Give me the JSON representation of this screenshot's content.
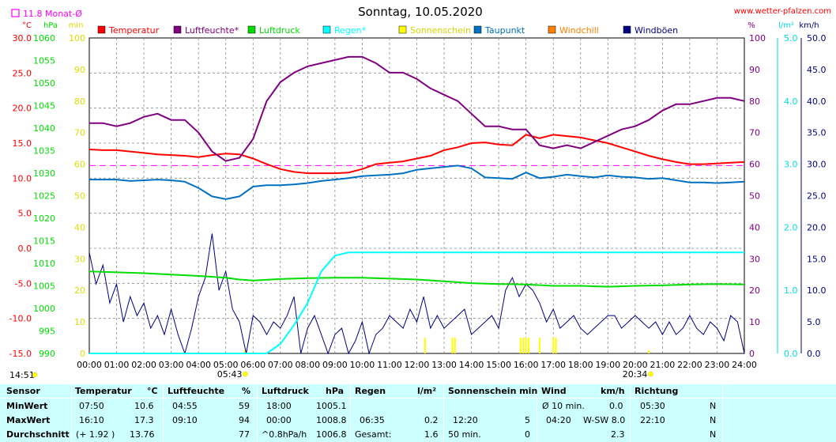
{
  "chart_data": {
    "type": "line",
    "title": "Sonntag, 10.05.2020",
    "source": "www.wetter-pfalzen.com",
    "monthly_avg_label": "11.8 Monat-Ø",
    "monthly_avg_value": 11.8,
    "left_axes": [
      {
        "unit": "°C",
        "min": -15,
        "max": 30,
        "step": 5,
        "color": "#ff0000",
        "ticks": [
          "30.0",
          "25.0",
          "20.0",
          "15.0",
          "10.0",
          "5.0",
          "0.0",
          "-5.0",
          "-10.0",
          "-15.0"
        ]
      },
      {
        "unit": "hPa",
        "min": 990,
        "max": 1060,
        "step": 5,
        "color": "#00dd00",
        "ticks": [
          "1060",
          "1055",
          "1050",
          "1045",
          "1040",
          "1035",
          "1030",
          "1025",
          "1020",
          "1015",
          "1010",
          "1005",
          "1000",
          "995",
          "990"
        ]
      },
      {
        "unit": "min",
        "min": 0,
        "max": 100,
        "step": 10,
        "color": "#dddd00",
        "ticks": [
          "100",
          "90",
          "80",
          "70",
          "60",
          "50",
          "40",
          "30",
          "20",
          "10",
          "0"
        ]
      }
    ],
    "right_axes": [
      {
        "unit": "%",
        "min": 0,
        "max": 100,
        "step": 10,
        "color": "#800080",
        "ticks": [
          "100",
          "90",
          "80",
          "70",
          "60",
          "50",
          "40",
          "30",
          "20",
          "10",
          "0"
        ]
      },
      {
        "unit": "l/m²",
        "min": 0,
        "max": 5,
        "step": 1,
        "color": "#00dddd",
        "ticks": [
          "5.0",
          "4.0",
          "3.0",
          "2.0",
          "1.0",
          "0.0"
        ]
      },
      {
        "unit": "km/h",
        "min": 0,
        "max": 50,
        "step": 5,
        "color": "#000080",
        "ticks": [
          "50.0",
          "45.0",
          "40.0",
          "35.0",
          "30.0",
          "25.0",
          "20.0",
          "15.0",
          "10.0",
          "5.0",
          "0.0"
        ]
      }
    ],
    "x_ticks": [
      "00:00",
      "01:00",
      "02:00",
      "03:00",
      "04:00",
      "05:00",
      "06:00",
      "07:00",
      "08:00",
      "09:00",
      "10:00",
      "11:00",
      "12:00",
      "13:00",
      "14:00",
      "15:00",
      "16:00",
      "17:00",
      "18:00",
      "19:00",
      "20:00",
      "21:00",
      "22:00",
      "23:00",
      "24:00"
    ],
    "sunrise": "05:43",
    "sunset": "20:34",
    "current_time": "14:51",
    "legend": [
      {
        "name": "Temperatur",
        "color": "#ff0000"
      },
      {
        "name": "Luftfeuchte*",
        "color": "#800080"
      },
      {
        "name": "Luftdruck",
        "color": "#00dd00"
      },
      {
        "name": "Regen*",
        "color": "#00ffff"
      },
      {
        "name": "Sonnenschein",
        "color": "#ffff00"
      },
      {
        "name": "Taupunkt",
        "color": "#0070c0"
      },
      {
        "name": "Windchill",
        "color": "#ff8000"
      },
      {
        "name": "Windböen",
        "color": "#000080"
      }
    ],
    "series": [
      {
        "name": "Temperatur",
        "unit": "°C",
        "color": "#ff0000",
        "x": [
          0,
          0.5,
          1,
          1.5,
          2,
          2.5,
          3,
          3.5,
          4,
          4.5,
          5,
          5.5,
          6,
          6.5,
          7,
          7.5,
          8,
          8.5,
          9,
          9.5,
          10,
          10.5,
          11,
          11.5,
          12,
          12.5,
          13,
          13.5,
          14,
          14.5,
          15,
          15.5,
          16,
          16.5,
          17,
          17.5,
          18,
          18.5,
          19,
          19.5,
          20,
          20.5,
          21,
          21.5,
          22,
          22.5,
          23,
          23.5,
          24
        ],
        "y": [
          14.1,
          14.0,
          14.0,
          13.8,
          13.6,
          13.4,
          13.3,
          13.2,
          13.0,
          13.3,
          13.5,
          13.4,
          12.8,
          12.0,
          11.3,
          10.9,
          10.7,
          10.7,
          10.7,
          10.8,
          11.3,
          12.0,
          12.2,
          12.4,
          12.8,
          13.2,
          14.0,
          14.4,
          15.0,
          15.1,
          14.8,
          14.7,
          16.2,
          15.7,
          16.2,
          16.0,
          15.8,
          15.4,
          15.0,
          14.4,
          13.8,
          13.2,
          12.7,
          12.3,
          12.0,
          12.0,
          12.1,
          12.2,
          12.3
        ]
      },
      {
        "name": "Luftfeuchte*",
        "unit": "%",
        "color": "#800080",
        "x": [
          0,
          0.5,
          1,
          1.5,
          2,
          2.5,
          3,
          3.5,
          4,
          4.5,
          5,
          5.5,
          6,
          6.5,
          7,
          7.5,
          8,
          8.5,
          9,
          9.5,
          10,
          10.5,
          11,
          11.5,
          12,
          12.5,
          13,
          13.5,
          14,
          14.5,
          15,
          15.5,
          16,
          16.5,
          17,
          17.5,
          18,
          18.5,
          19,
          19.5,
          20,
          20.5,
          21,
          21.5,
          22,
          22.5,
          23,
          23.5,
          24
        ],
        "y": [
          73,
          73,
          72,
          73,
          75,
          76,
          74,
          74,
          70,
          64,
          61,
          62,
          68,
          80,
          86,
          89,
          91,
          92,
          93,
          94,
          94,
          92,
          89,
          89,
          87,
          84,
          82,
          80,
          76,
          72,
          72,
          71,
          71,
          66,
          65,
          66,
          65,
          67,
          69,
          71,
          72,
          74,
          77,
          79,
          79,
          80,
          81,
          81,
          80
        ]
      },
      {
        "name": "Luftdruck",
        "unit": "hPa",
        "color": "#00dd00",
        "x": [
          0,
          1,
          2,
          3,
          4,
          5,
          5.5,
          6,
          7,
          8,
          9,
          10,
          11,
          12,
          13,
          14,
          15,
          16,
          17,
          18,
          19,
          20,
          21,
          22,
          23,
          24
        ],
        "y": [
          1008.2,
          1008.0,
          1007.8,
          1007.5,
          1007.2,
          1006.8,
          1006.4,
          1006.2,
          1006.5,
          1006.7,
          1006.8,
          1006.8,
          1006.6,
          1006.4,
          1006.0,
          1005.6,
          1005.4,
          1005.3,
          1005.0,
          1005.0,
          1004.8,
          1005.0,
          1005.1,
          1005.3,
          1005.4,
          1005.3
        ]
      },
      {
        "name": "Regen*",
        "unit": "l/m²",
        "color": "#00ffff",
        "x": [
          0,
          6.5,
          7,
          7.5,
          8,
          8.5,
          9,
          9.5,
          10,
          24
        ],
        "y": [
          0,
          0,
          0.15,
          0.45,
          0.8,
          1.3,
          1.55,
          1.6,
          1.6,
          1.6
        ]
      },
      {
        "name": "Taupunkt",
        "unit": "°C",
        "color": "#0070c0",
        "x": [
          0,
          0.5,
          1,
          1.5,
          2,
          2.5,
          3,
          3.5,
          4,
          4.5,
          5,
          5.5,
          6,
          6.5,
          7,
          7.5,
          8,
          8.5,
          9,
          9.5,
          10,
          10.5,
          11,
          11.5,
          12,
          12.5,
          13,
          13.5,
          14,
          14.5,
          15,
          15.5,
          16,
          16.5,
          17,
          17.5,
          18,
          18.5,
          19,
          19.5,
          20,
          20.5,
          21,
          21.5,
          22,
          22.5,
          23,
          23.5,
          24
        ],
        "y": [
          9.8,
          9.8,
          9.8,
          9.6,
          9.7,
          9.8,
          9.7,
          9.5,
          8.6,
          7.4,
          7.0,
          7.4,
          8.8,
          9.0,
          9.0,
          9.1,
          9.3,
          9.6,
          9.8,
          10.0,
          10.3,
          10.4,
          10.5,
          10.7,
          11.2,
          11.4,
          11.6,
          11.8,
          11.4,
          10.1,
          10.0,
          9.9,
          10.8,
          10.0,
          10.2,
          10.5,
          10.3,
          10.1,
          10.4,
          10.2,
          10.1,
          9.9,
          10.0,
          9.7,
          9.4,
          9.4,
          9.3,
          9.4,
          9.5
        ]
      }
    ],
    "windboeen": {
      "unit": "km/h",
      "color": "#000080",
      "x": [
        0,
        0.25,
        0.5,
        0.75,
        1,
        1.25,
        1.5,
        1.75,
        2,
        2.25,
        2.5,
        2.75,
        3,
        3.25,
        3.5,
        3.75,
        4,
        4.25,
        4.5,
        4.75,
        5,
        5.25,
        5.5,
        5.75,
        6,
        6.25,
        6.5,
        6.75,
        7,
        7.25,
        7.5,
        7.75,
        8,
        8.25,
        8.5,
        8.75,
        9,
        9.25,
        9.5,
        9.75,
        10,
        10.25,
        10.5,
        10.75,
        11,
        11.25,
        11.5,
        11.75,
        12,
        12.25,
        12.5,
        12.75,
        13,
        13.25,
        13.5,
        13.75,
        14,
        14.25,
        14.5,
        14.75,
        15,
        15.25,
        15.5,
        15.75,
        16,
        16.25,
        16.5,
        16.75,
        17,
        17.25,
        17.5,
        17.75,
        18,
        18.25,
        18.5,
        18.75,
        19,
        19.25,
        19.5,
        19.75,
        20,
        20.25,
        20.5,
        20.75,
        21,
        21.25,
        21.5,
        21.75,
        22,
        22.25,
        22.5,
        22.75,
        23,
        23.25,
        23.5,
        23.75,
        24
      ],
      "y": [
        16,
        11,
        14,
        8,
        11,
        5,
        9,
        6,
        8,
        4,
        6,
        3,
        7,
        3,
        0,
        4,
        9,
        12,
        19,
        10,
        13,
        7,
        5,
        0,
        6,
        5,
        3,
        5,
        4,
        6,
        9,
        0,
        4,
        6,
        3,
        0,
        3,
        4,
        0,
        2,
        5,
        0,
        3,
        4,
        6,
        5,
        4,
        7,
        5,
        9,
        4,
        6,
        4,
        5,
        6,
        7,
        3,
        4,
        5,
        6,
        4,
        10,
        12,
        9,
        11,
        10,
        8,
        5,
        7,
        4,
        5,
        6,
        4,
        3,
        4,
        5,
        6,
        6,
        4,
        5,
        6,
        5,
        4,
        5,
        3,
        5,
        3,
        4,
        6,
        4,
        3,
        5,
        4,
        2,
        6,
        5,
        0
      ]
    },
    "sonnenschein": {
      "unit": "min",
      "color": "#ffff00",
      "x": [
        5.7,
        12.3,
        13.3,
        13.4,
        15.8,
        15.9,
        16.0,
        16.1,
        16.5,
        17.0,
        17.1,
        20.5
      ],
      "y": [
        1,
        5,
        5,
        5,
        5,
        5,
        5,
        5,
        5,
        5,
        5,
        1
      ]
    },
    "monthly_avg_line": {
      "color": "#ff00ff",
      "value_c": 11.8,
      "right_scale_value": 60
    }
  },
  "table": {
    "headers": {
      "sensor": "Sensor",
      "temp": "Temperatur",
      "temp_unit": "°C",
      "hum": "Luftfeuchte",
      "hum_unit": "%",
      "press": "Luftdruck",
      "press_unit": "hPa",
      "rain": "Regen",
      "rain_unit": "l/m²",
      "sun": "Sonnenschein min",
      "wind": "Wind",
      "wind_unit": "km/h",
      "dir": "Richtung"
    },
    "rows": [
      {
        "label": "MinWert",
        "temp_time": "07:50",
        "temp_val": "10.6",
        "hum_time": "04:55",
        "hum_val": "59",
        "press_time": "18:00",
        "press_val": "1005.1",
        "rain_time": "",
        "rain_val": "",
        "sun_time": "",
        "sun_val": "",
        "wind_time": "Ø 10 min.",
        "wind_val": "0.0",
        "dir_time": "05:30",
        "dir_val": "N"
      },
      {
        "label": "MaxWert",
        "temp_time": "16:10",
        "temp_val": "17.3",
        "hum_time": "09:10",
        "hum_val": "94",
        "press_time": "00:00",
        "press_val": "1008.8",
        "rain_time": "06:35",
        "rain_val": "0.2",
        "sun_time": "12:20",
        "sun_val": "5",
        "wind_time": "04:20",
        "wind_val": "W-SW 8.0",
        "dir_time": "22:10",
        "dir_val": "N"
      },
      {
        "label": "Durchschnitt",
        "temp_time": "(+ 1.92 )",
        "temp_val": "13.76",
        "hum_time": "",
        "hum_val": "77",
        "press_time": "^0.8hPa/h",
        "press_val": "1006.8",
        "rain_time": "Gesamt:",
        "rain_val": "1.6",
        "sun_time": "50 min.",
        "sun_val": "0",
        "wind_time": "",
        "wind_val": "2.3",
        "dir_time": "",
        "dir_val": "N"
      }
    ]
  }
}
